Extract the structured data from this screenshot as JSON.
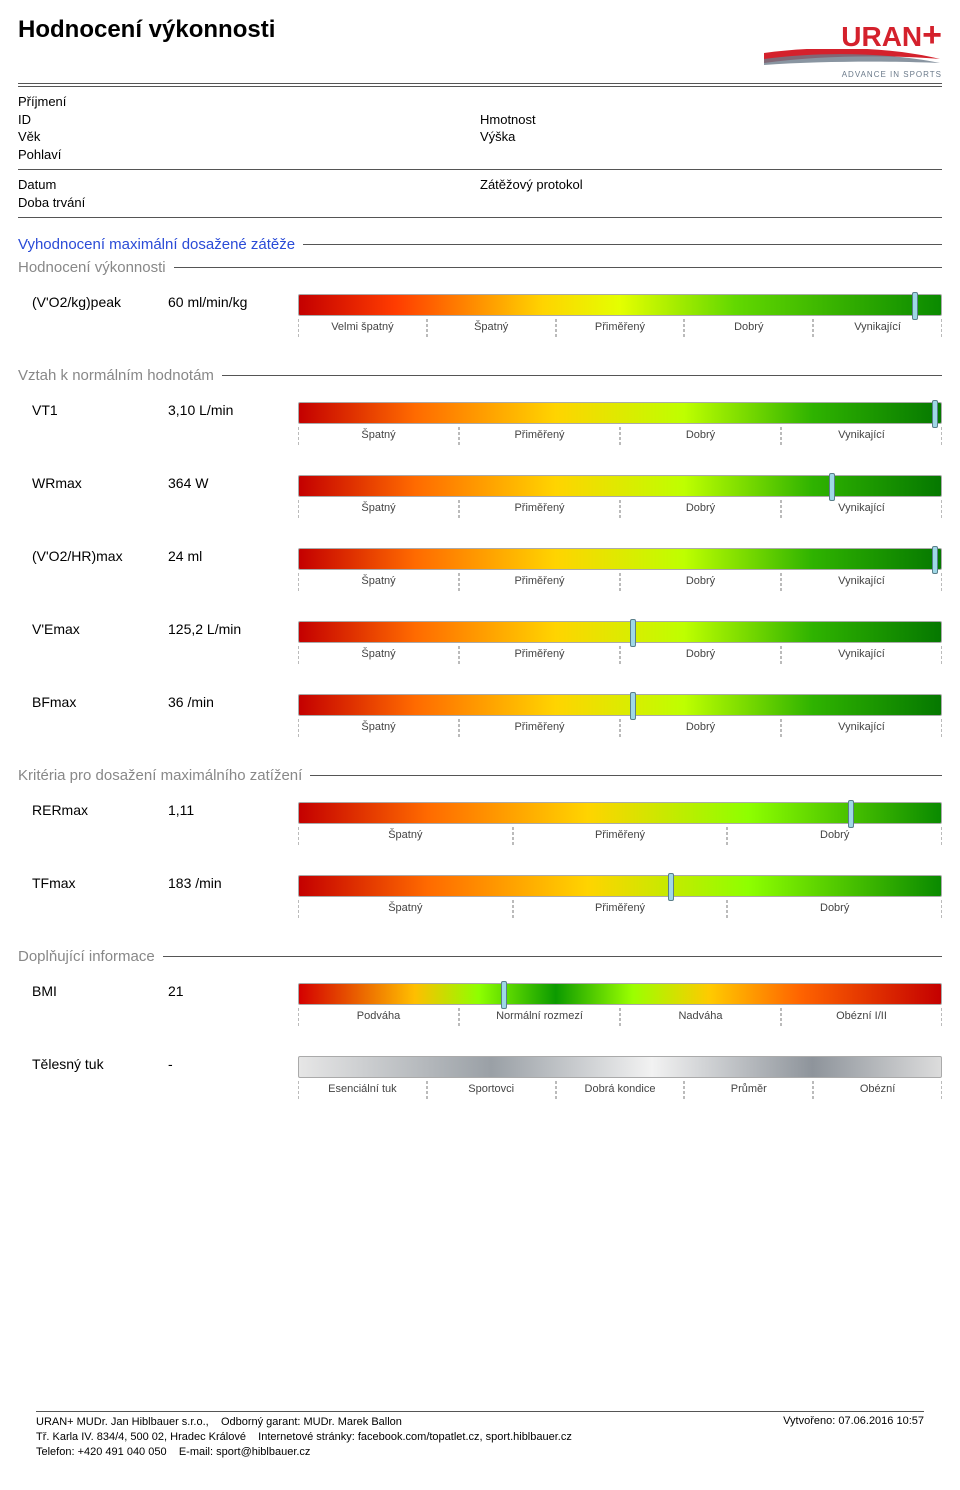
{
  "header": {
    "title": "Hodnocení výkonnosti",
    "logo_text": "URAN",
    "logo_plus": "+",
    "logo_sub": "ADVANCE IN SPORTS",
    "logo_color": "#d4212c",
    "swoosh_colors": [
      "#d4212c",
      "#6b7a8a"
    ]
  },
  "patient": {
    "labels": {
      "prijmeni": "Příjmení",
      "id": "ID",
      "vek": "Věk",
      "pohlavi": "Pohlaví",
      "hmotnost": "Hmotnost",
      "vyska": "Výška",
      "datum": "Datum",
      "doba": "Doba trvání",
      "protokol": "Zátěžový protokol"
    }
  },
  "section": {
    "main_title": "Vyhodnocení maximální dosažené zátěže",
    "sub1": "Hodnocení výkonnosti",
    "sub2": "Vztah k normálním hodnotám",
    "sub3": "Kritéria pro dosažení maximálního zatížení",
    "sub4": "Doplňující informace"
  },
  "bars": {
    "full5": {
      "labels": [
        "Velmi špatný",
        "Špatný",
        "Přiměřený",
        "Dobrý",
        "Vynikající"
      ],
      "gradient": "linear-gradient(to right, #c40000 0%, #ff3c00 15%, #ffd400 38%, #e4ff00 50%, #62d800 68%, #0a8a00 100%)"
    },
    "four": {
      "labels": [
        "Špatný",
        "Přiměřený",
        "Dobrý",
        "Vynikající"
      ],
      "gradient": "linear-gradient(to right, #c40000 0%, #ff6a00 18%, #ffd400 40%, #beff00 60%, #2fb300 80%, #057800 100%)"
    },
    "three": {
      "labels": [
        "Špatný",
        "Přiměřený",
        "Dobrý"
      ],
      "gradient": "linear-gradient(to right, #c40000 0%, #ff6a00 20%, #ffd400 45%, #8eff00 70%, #0a8a00 100%)"
    },
    "bmi": {
      "labels": [
        "Podváha",
        "Normální rozmezí",
        "Nadváha",
        "Obézní I/II"
      ],
      "gradient": "linear-gradient(to right, #d40000 0%, #ffbe00 18%, #8eff00 28%, #0c9a00 40%, #9bff00 52%, #ffca00 64%, #ff6400 78%, #c40000 100%)"
    },
    "fat": {
      "labels": [
        "Esenciální tuk",
        "Sportovci",
        "Dobrá kondice",
        "Průměr",
        "Obézní"
      ],
      "gradient": "linear-gradient(to right, #e6e6e6 0%, #9aa0a6 30%, #f2f2f2 55%, #8e949b 80%, #dcdcdc 100%)"
    }
  },
  "metrics": [
    {
      "name": "(V'O2/kg)peak",
      "value": "60 ml/min/kg",
      "bar": "full5",
      "marker": 96
    },
    {
      "name": "VT1",
      "value": "3,10 L/min",
      "bar": "four",
      "marker": 99
    },
    {
      "name": "WRmax",
      "value": "364 W",
      "bar": "four",
      "marker": 83
    },
    {
      "name": "(V'O2/HR)max",
      "value": "24 ml",
      "bar": "four",
      "marker": 99
    },
    {
      "name": "V'Emax",
      "value": "125,2 L/min",
      "bar": "four",
      "marker": 52
    },
    {
      "name": "BFmax",
      "value": "36 /min",
      "bar": "four",
      "marker": 52
    },
    {
      "name": "RERmax",
      "value": "1,11",
      "bar": "three",
      "marker": 86
    },
    {
      "name": "TFmax",
      "value": "183 /min",
      "bar": "three",
      "marker": 58
    },
    {
      "name": "BMI",
      "value": "21",
      "bar": "bmi",
      "marker": 32
    },
    {
      "name": "Tělesný tuk",
      "value": "-",
      "bar": "fat",
      "marker": null
    }
  ],
  "footer": {
    "line1_a": "URAN+ MUDr. Jan Hiblbauer s.r.o.,",
    "line1_b": "Odborný garant: MUDr. Marek Ballon",
    "line2_a": "Tř. Karla IV. 834/4, 500 02, Hradec Králové",
    "line2_b": "Internetové stránky: facebook.com/topatlet.cz, sport.hiblbauer.cz",
    "line3_a": "Telefon: +420 491 040 050",
    "line3_b": "E-mail: sport@hiblbauer.cz",
    "created": "Vytvořeno: 07.06.2016 10:57"
  }
}
